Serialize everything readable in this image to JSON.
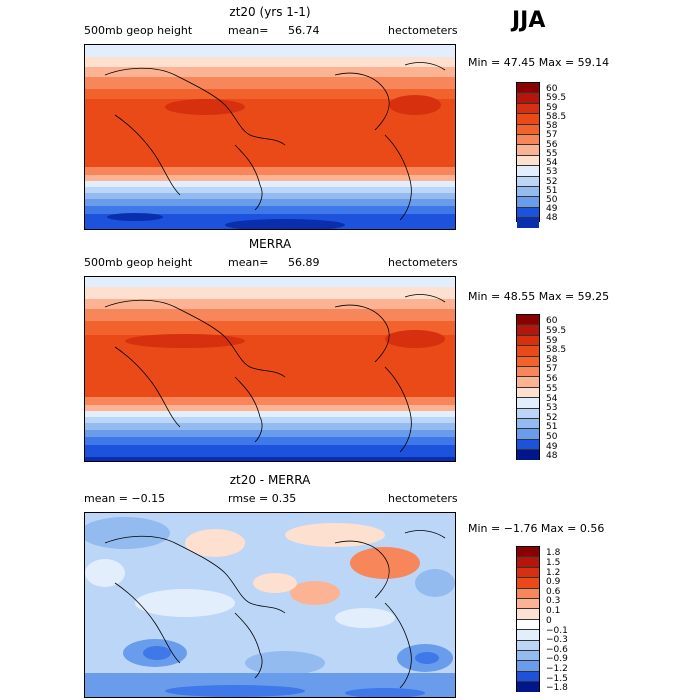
{
  "season": "JJA",
  "panels": [
    {
      "title": "zt20 (yrs 1-1)",
      "field": "500mb geop height",
      "mean_label": "mean=",
      "mean": "56.74",
      "units": "hectometers",
      "minmax": "Min =  47.45 Max =  59.14",
      "colorbar": [
        "60",
        "59.5",
        "59",
        "58.5",
        "58",
        "57",
        "56",
        "55",
        "54",
        "53",
        "52",
        "51",
        "50",
        "49",
        "48"
      ]
    },
    {
      "title": "MERRA",
      "field": "500mb geop height",
      "mean_label": "mean=",
      "mean": "56.89",
      "units": "hectometers",
      "minmax": "Min =  48.55 Max =  59.25",
      "colorbar": [
        "60",
        "59.5",
        "59",
        "58.5",
        "58",
        "57",
        "56",
        "55",
        "54",
        "53",
        "52",
        "51",
        "50",
        "49",
        "48"
      ]
    },
    {
      "title": "zt20 - MERRA",
      "stat1": "mean =  −0.15",
      "stat2": "rmse =    0.35",
      "units": "hectometers",
      "minmax": "Min =  −1.76 Max =    0.56",
      "colorbar": [
        "1.8",
        "1.5",
        "1.2",
        "0.9",
        "0.6",
        "0.3",
        "0.1",
        "0",
        "−0.1",
        "−0.3",
        "−0.6",
        "−0.9",
        "−1.2",
        "−1.5",
        "−1.8"
      ]
    }
  ],
  "colors": {
    "scale": [
      "#8b0000",
      "#b5160c",
      "#d6300f",
      "#ea4a18",
      "#f2622d",
      "#f7865a",
      "#fbb394",
      "#fde0cf",
      "#e2eefc",
      "#bcd6f7",
      "#93bbf0",
      "#6a9cec",
      "#3f78e8",
      "#1c52dc",
      "#0a2fae",
      "#00168a"
    ]
  }
}
